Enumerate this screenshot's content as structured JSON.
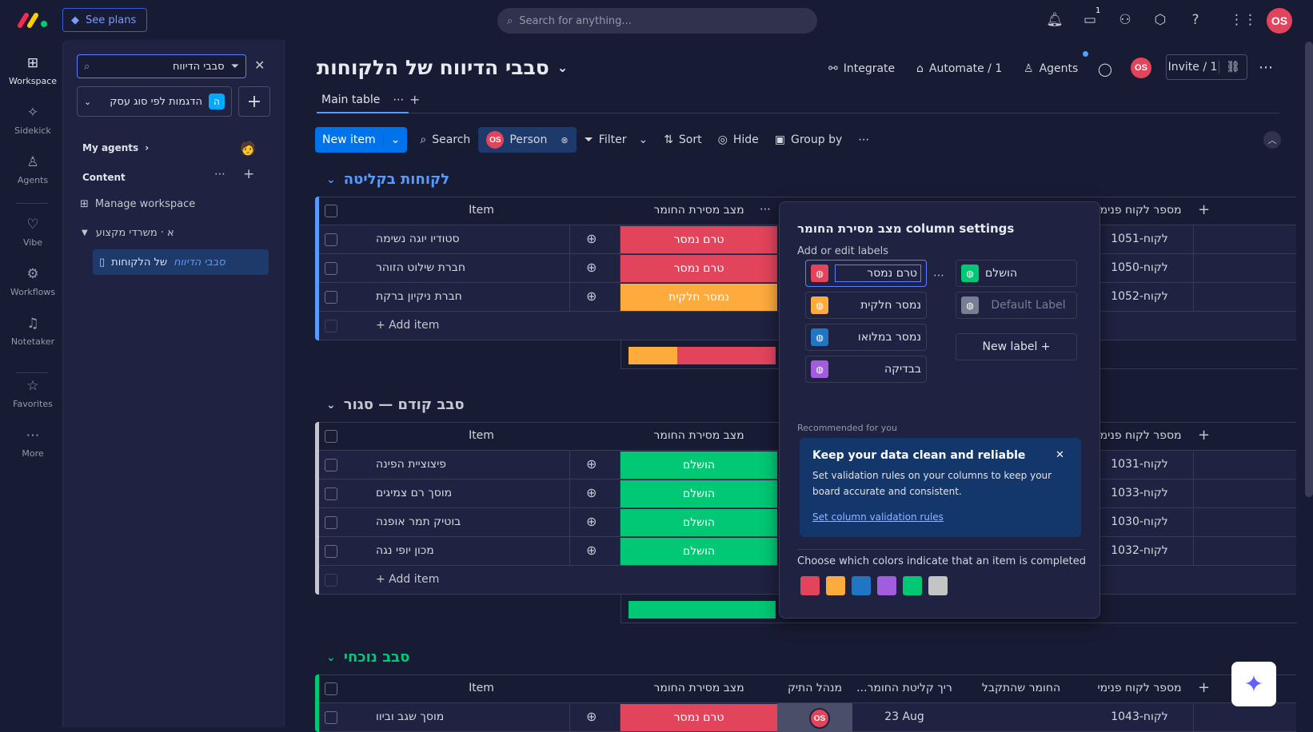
{
  "topbar": {
    "see_plans": "See plans",
    "search_placeholder": "Search for anything...",
    "inbox_badge": "1",
    "user_initials": "OS"
  },
  "rail": {
    "items": [
      {
        "label": "Workspace",
        "icon": "grid-icon"
      },
      {
        "label": "Sidekick",
        "icon": "sidekick-icon"
      },
      {
        "label": "Agents",
        "icon": "agents-icon"
      },
      {
        "label": "Vibe",
        "icon": "vibe-icon"
      },
      {
        "label": "Workflows",
        "icon": "workflows-icon"
      },
      {
        "label": "Notetaker",
        "icon": "notetaker-icon"
      },
      {
        "label": "Favorites",
        "icon": "star-icon"
      },
      {
        "label": "More",
        "icon": "more-icon"
      }
    ]
  },
  "panel": {
    "search_value": "סבבי הדיווח",
    "workspace_badge": "ה",
    "workspace_name": "הדגמות לפי סוג עסק",
    "my_agents": "My agents",
    "content": "Content",
    "manage": "Manage workspace",
    "folder": "א · משרדי מקצוע",
    "board_highlight": "סבבי הדיווח",
    "board_rest": "של הלקוחות"
  },
  "board": {
    "title": "סבבי הדיווח של הלקוחות",
    "integrate": "Integrate",
    "automate": "Automate / 1",
    "agents": "Agents",
    "invite": "Invite / 1",
    "user_initials": "OS",
    "tab": "Main table"
  },
  "toolbar": {
    "new_item": "New item",
    "search": "Search",
    "person_initials": "OS",
    "person": "Person",
    "filter": "Filter",
    "sort": "Sort",
    "hide": "Hide",
    "group_by": "Group by"
  },
  "columns": {
    "item": "Item",
    "status": "מצב מסירת החומר",
    "owner": "מנהל התיק",
    "date": "...ריך קליטת החומר",
    "received": "החומר שהתקבל",
    "client_id": "מספר לקוח פנימי"
  },
  "groups": [
    {
      "title": "לקוחות בקליטה",
      "color": "#579bfc",
      "rows": [
        {
          "name": "סטודיו יוגה נשימה",
          "status": "טרם נמסר",
          "status_color": "#e2445c",
          "id": "לקוח-1051"
        },
        {
          "name": "חברת שילוט הזוהר",
          "status": "טרם נמסר",
          "status_color": "#e2445c",
          "id": "לקוח-1050"
        },
        {
          "name": "חברת ניקיון ברקת",
          "status": "נמסר חלקית",
          "status_color": "#fdab3d",
          "id": "לקוח-1052"
        }
      ],
      "add_item": "+ Add item"
    },
    {
      "title": "סבב קודם — סגור",
      "color": "#c5c7d0",
      "rows": [
        {
          "name": "פיצוציית הפינה",
          "status": "הושלם",
          "status_color": "#00c875",
          "id": "לקוח-1031"
        },
        {
          "name": "מוסך רם צמיגים",
          "status": "הושלם",
          "status_color": "#00c875",
          "id": "לקוח-1033"
        },
        {
          "name": "בוטיק תמר אופנה",
          "status": "הושלם",
          "status_color": "#00c875",
          "id": "לקוח-1030"
        },
        {
          "name": "מכון יופי נגה",
          "status": "הושלם",
          "status_color": "#00c875",
          "id": "לקוח-1032"
        }
      ],
      "add_item": "+ Add item"
    },
    {
      "title": "סבב נוכחי",
      "color": "#00c875",
      "rows": [
        {
          "name": "מוסך שגב וביוו",
          "status": "טרם נמסר",
          "status_color": "#e2445c",
          "owner": "OS",
          "date": "23 Aug",
          "id": "לקוח-1043"
        }
      ]
    }
  ],
  "popup": {
    "title": "מצב מסירת החומר column settings",
    "subtitle": "Add or edit labels",
    "labels_left": [
      {
        "text": "טרם נמסר",
        "color": "#e2445c"
      },
      {
        "text": "נמסר חלקית",
        "color": "#fdab3d"
      },
      {
        "text": "נמסר במלואו",
        "color": "#1f76c2"
      },
      {
        "text": "בבדיקה",
        "color": "#a25ddc"
      }
    ],
    "labels_right": [
      {
        "text": "הושלם",
        "color": "#00c875"
      },
      {
        "text": "Default Label",
        "color": "#797e93"
      }
    ],
    "new_label": "+ New label",
    "recommended": "Recommended for you",
    "reco_title": "Keep your data clean and reliable",
    "reco_body1": "Set validation rules on your columns to keep your",
    "reco_body2": "board accurate and consistent.",
    "reco_link": "Set column validation rules",
    "colors_title": "Choose which colors indicate that an item is completed",
    "completion_colors": [
      "#e2445c",
      "#fdab3d",
      "#1f76c2",
      "#a25ddc",
      "#00c875",
      "#c4c4c4"
    ]
  }
}
